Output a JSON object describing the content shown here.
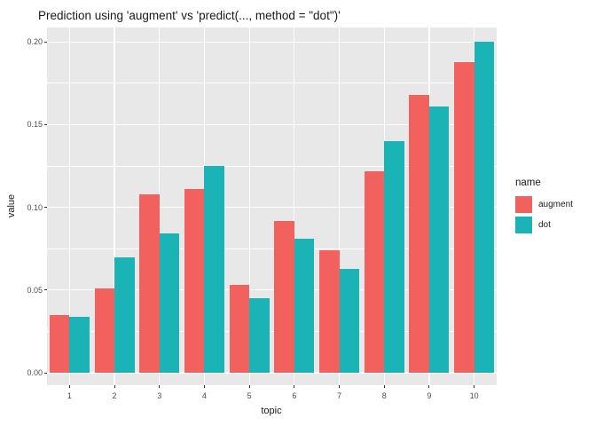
{
  "chart_data": {
    "type": "bar",
    "title": "Prediction using 'augment' vs 'predict(..., method = \"dot\")'",
    "categories": [
      "1",
      "2",
      "3",
      "4",
      "5",
      "6",
      "7",
      "8",
      "9",
      "10"
    ],
    "series": [
      {
        "name": "augment",
        "color": "#f2615d",
        "values": [
          0.035,
          0.051,
          0.108,
          0.111,
          0.053,
          0.092,
          0.074,
          0.122,
          0.168,
          0.188
        ]
      },
      {
        "name": "dot",
        "color": "#1ab3b6",
        "values": [
          0.034,
          0.07,
          0.084,
          0.125,
          0.045,
          0.081,
          0.063,
          0.14,
          0.161,
          0.2
        ]
      }
    ],
    "xlabel": "topic",
    "ylabel": "value",
    "ylim": [
      0,
      0.2
    ],
    "y_ticks": [
      "0.00",
      "0.05",
      "0.10",
      "0.15",
      "0.20"
    ],
    "y_major_step": 0.05,
    "y_minor_step": 0.025,
    "grid": true,
    "legend_title": "name",
    "legend_position": "right"
  },
  "colors": {
    "panel_background": "#e8e8e8",
    "gridline": "#ffffff",
    "tick_label": "#4d4d4d",
    "text": "#1a1a1a",
    "tick_mark": "#333333",
    "augment": "#f2615d",
    "dot": "#1ab3b6"
  }
}
